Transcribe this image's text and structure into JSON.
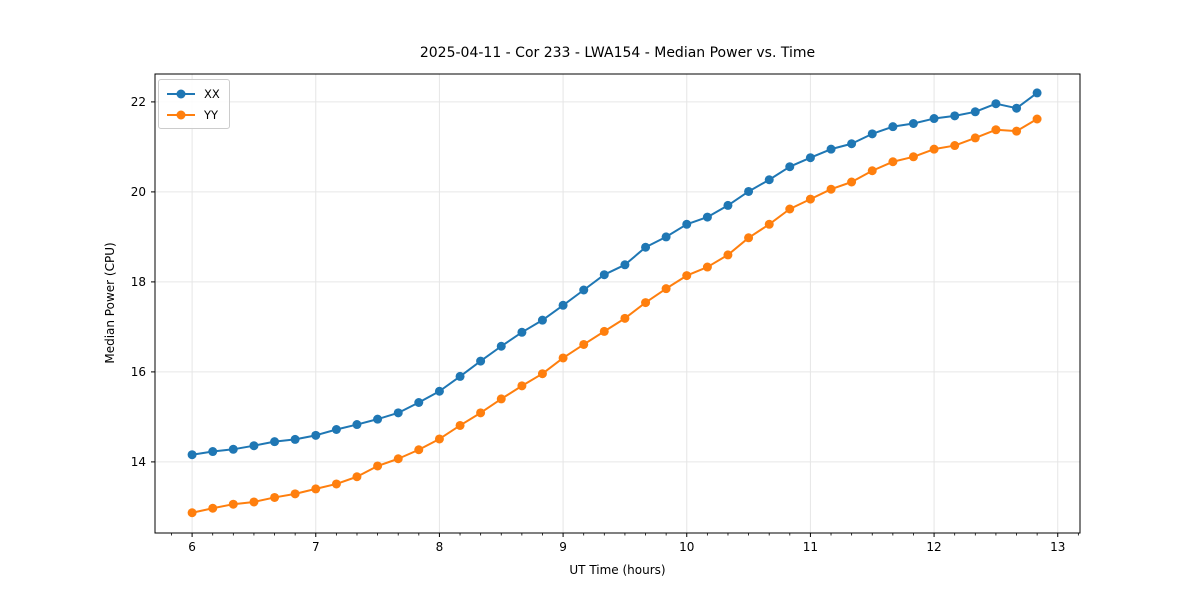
{
  "chart_data": {
    "type": "line",
    "title": "2025-04-11 - Cor 233 - LWA154 - Median Power vs. Time",
    "xlabel": "UT Time (hours)",
    "ylabel": "Median Power (CPU)",
    "xlim": [
      5.7,
      13.18
    ],
    "ylim": [
      12.42,
      22.62
    ],
    "xticks": [
      6,
      7,
      8,
      9,
      10,
      11,
      12,
      13
    ],
    "xtick_labels": [
      "6",
      "7",
      "8",
      "9",
      "10",
      "11",
      "12",
      "13"
    ],
    "yticks": [
      14,
      16,
      18,
      20,
      22
    ],
    "ytick_labels": [
      "14",
      "16",
      "18",
      "20",
      "22"
    ],
    "minor_tick_step_x": 0.16667,
    "grid": true,
    "legend_position": "upper-left",
    "x": [
      6.0,
      6.167,
      6.333,
      6.5,
      6.667,
      6.833,
      7.0,
      7.167,
      7.333,
      7.5,
      7.667,
      7.833,
      8.0,
      8.167,
      8.333,
      8.5,
      8.667,
      8.833,
      9.0,
      9.167,
      9.333,
      9.5,
      9.667,
      9.833,
      10.0,
      10.167,
      10.333,
      10.5,
      10.667,
      10.833,
      11.0,
      11.167,
      11.333,
      11.5,
      11.667,
      11.833,
      12.0,
      12.167,
      12.333,
      12.5,
      12.667,
      12.833
    ],
    "series": [
      {
        "name": "XX",
        "color": "#1f77b4",
        "values": [
          14.16,
          14.23,
          14.28,
          14.36,
          14.45,
          14.5,
          14.59,
          14.72,
          14.83,
          14.95,
          15.09,
          15.32,
          15.57,
          15.9,
          16.24,
          16.57,
          16.88,
          17.15,
          17.48,
          17.82,
          18.16,
          18.38,
          18.77,
          19.0,
          19.28,
          19.44,
          19.7,
          20.01,
          20.27,
          20.56,
          20.76,
          20.95,
          21.07,
          21.29,
          21.45,
          21.52,
          21.63,
          21.69,
          21.78,
          21.96,
          21.86,
          22.2
        ]
      },
      {
        "name": "YY",
        "color": "#ff7f0e",
        "values": [
          12.87,
          12.97,
          13.06,
          13.11,
          13.21,
          13.29,
          13.4,
          13.51,
          13.67,
          13.91,
          14.07,
          14.27,
          14.51,
          14.81,
          15.09,
          15.4,
          15.69,
          15.96,
          16.31,
          16.61,
          16.9,
          17.19,
          17.54,
          17.85,
          18.14,
          18.33,
          18.6,
          18.98,
          19.28,
          19.62,
          19.84,
          20.06,
          20.22,
          20.47,
          20.67,
          20.78,
          20.95,
          21.03,
          21.2,
          21.38,
          21.35,
          21.62
        ]
      }
    ],
    "colors": {
      "background": "#ffffff",
      "spine": "#000000",
      "grid": "#e6e6e6",
      "text": "#000000"
    }
  }
}
